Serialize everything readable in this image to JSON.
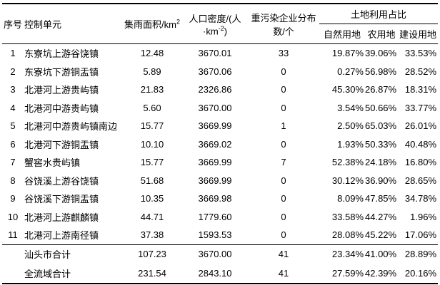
{
  "table": {
    "headers": {
      "no": "序号",
      "unit": "控制单元",
      "area_prefix": "集雨面积/km",
      "area_sup": "2",
      "density_prefix": "人口密度/(人·km",
      "density_sup": "-2",
      "density_suffix": ")",
      "enterprises": "重污染企业分布数/个",
      "landuse_group": "土地利用占比",
      "natural": "自然用地",
      "agricultural": "农用地",
      "construction": "建设用地"
    },
    "rows": [
      {
        "no": "1",
        "name": "东寮坑上游谷饶镇",
        "area": "12.48",
        "density": "3670.01",
        "ent": "33",
        "nat": "19.87%",
        "agri": "39.06%",
        "cons": "33.53%"
      },
      {
        "no": "2",
        "name": "东寮坑下游铜盂镇",
        "area": "5.89",
        "density": "3670.06",
        "ent": "0",
        "nat": "0.27%",
        "agri": "56.98%",
        "cons": "28.52%"
      },
      {
        "no": "3",
        "name": "北港河上游贵屿镇",
        "area": "21.83",
        "density": "2326.86",
        "ent": "0",
        "nat": "45.30%",
        "agri": "26.87%",
        "cons": "18.31%"
      },
      {
        "no": "4",
        "name": "北港河中游贵屿镇",
        "area": "5.60",
        "density": "3670.00",
        "ent": "0",
        "nat": "3.54%",
        "agri": "50.66%",
        "cons": "33.77%"
      },
      {
        "no": "5",
        "name": "北港河中游贵屿镇南边",
        "area": "15.77",
        "density": "3669.99",
        "ent": "1",
        "nat": "2.50%",
        "agri": "65.03%",
        "cons": "26.01%"
      },
      {
        "no": "6",
        "name": "北港河下游铜盂镇",
        "area": "10.10",
        "density": "3669.02",
        "ent": "0",
        "nat": "1.93%",
        "agri": "50.33%",
        "cons": "40.48%"
      },
      {
        "no": "7",
        "name": "蟹窖水贵屿镇",
        "area": "15.77",
        "density": "3669.99",
        "ent": "7",
        "nat": "52.38%",
        "agri": "24.18%",
        "cons": "16.80%"
      },
      {
        "no": "8",
        "name": "谷饶溪上游谷饶镇",
        "area": "51.68",
        "density": "3669.99",
        "ent": "0",
        "nat": "30.12%",
        "agri": "36.90%",
        "cons": "28.65%"
      },
      {
        "no": "9",
        "name": "谷饶溪下游铜盂镇",
        "area": "10.35",
        "density": "3669.98",
        "ent": "0",
        "nat": "8.09%",
        "agri": "47.85%",
        "cons": "34.78%"
      },
      {
        "no": "10",
        "name": "北港河上游麒麟镇",
        "area": "44.71",
        "density": "1779.60",
        "ent": "0",
        "nat": "33.58%",
        "agri": "44.27%",
        "cons": "1.96%"
      },
      {
        "no": "11",
        "name": "北港河上游南径镇",
        "area": "37.38",
        "density": "1593.53",
        "ent": "0",
        "nat": "28.08%",
        "agri": "45.22%",
        "cons": "17.06%"
      }
    ],
    "totals": [
      {
        "name": "汕头市合计",
        "area": "107.23",
        "density": "3670.00",
        "ent": "41",
        "nat": "23.34%",
        "agri": "41.00%",
        "cons": "28.89%"
      },
      {
        "name": "全流域合计",
        "area": "231.54",
        "density": "2843.10",
        "ent": "41",
        "nat": "27.59%",
        "agri": "42.39%",
        "cons": "20.16%"
      }
    ]
  }
}
